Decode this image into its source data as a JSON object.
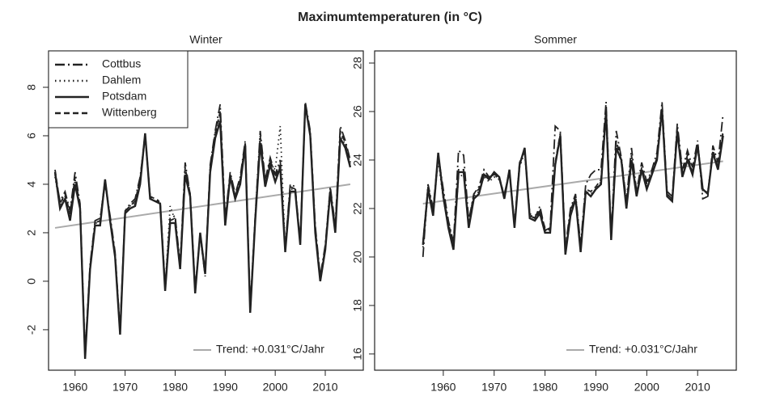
{
  "title": "Maximumtemperaturen (in °C)",
  "chart_data": [
    {
      "type": "line",
      "title": "Winter",
      "x": [
        1956,
        1957,
        1958,
        1959,
        1960,
        1961,
        1962,
        1963,
        1964,
        1965,
        1966,
        1967,
        1968,
        1969,
        1970,
        1971,
        1972,
        1973,
        1974,
        1975,
        1976,
        1977,
        1978,
        1979,
        1980,
        1981,
        1982,
        1983,
        1984,
        1985,
        1986,
        1987,
        1988,
        1989,
        1990,
        1991,
        1992,
        1993,
        1994,
        1995,
        1996,
        1997,
        1998,
        1999,
        2000,
        2001,
        2002,
        2003,
        2004,
        2005,
        2006,
        2007,
        2008,
        2009,
        2010,
        2011,
        2012,
        2013,
        2014,
        2015
      ],
      "xlim": [
        1954.7,
        2017.6
      ],
      "xticks": [
        1960,
        1970,
        1980,
        1990,
        2000,
        2010
      ],
      "ylim": [
        -3.67,
        9.5
      ],
      "yticks": [
        -2,
        0,
        2,
        4,
        6,
        8
      ],
      "legend": "topleft",
      "series": [
        {
          "name": "Cottbus",
          "color": "#222222",
          "linestyle": "dashdot",
          "values": [
            4.4,
            3.3,
            3.7,
            2.9,
            4.5,
            3.2,
            -3.0,
            0.7,
            2.5,
            2.6,
            4.0,
            2.7,
            1.2,
            -2.0,
            2.9,
            3.2,
            3.4,
            4.3,
            6.0,
            3.5,
            3.4,
            3.3,
            -0.2,
            2.6,
            2.7,
            0.7,
            4.9,
            3.6,
            -0.3,
            1.9,
            0.2,
            4.8,
            6.2,
            7.3,
            2.6,
            4.5,
            3.6,
            4.3,
            5.8,
            -1.1,
            2.7,
            6.2,
            4.2,
            5.1,
            4.4,
            5.0,
            1.4,
            4.0,
            3.9,
            1.6,
            7.4,
            6.2,
            2.3,
            0.2,
            1.5,
            3.9,
            2.3,
            6.4,
            5.8,
            5.0
          ]
        },
        {
          "name": "Dahlem",
          "color": "#222222",
          "linestyle": "dotted",
          "values": [
            4.3,
            3.1,
            3.5,
            2.7,
            4.2,
            3.1,
            -3.1,
            0.6,
            2.4,
            2.4,
            4.1,
            2.6,
            1.1,
            -2.1,
            2.8,
            3.1,
            3.2,
            4.1,
            6.0,
            3.4,
            3.3,
            3.2,
            -0.3,
            3.1,
            2.5,
            0.6,
            4.5,
            3.5,
            -0.4,
            1.9,
            0.3,
            4.6,
            6.0,
            6.8,
            2.4,
            4.4,
            3.5,
            4.1,
            5.6,
            -1.2,
            2.6,
            5.9,
            4.0,
            4.9,
            4.6,
            6.4,
            1.3,
            3.8,
            3.8,
            1.5,
            7.2,
            6.1,
            2.1,
            0.1,
            1.4,
            3.8,
            2.1,
            6.1,
            5.6,
            4.8
          ]
        },
        {
          "name": "Potsdam",
          "color": "#222222",
          "linestyle": "solid",
          "values": [
            4.5,
            3.0,
            3.4,
            2.5,
            4.0,
            3.0,
            -3.2,
            0.5,
            2.3,
            2.3,
            4.2,
            2.5,
            1.0,
            -2.2,
            2.8,
            3.0,
            3.1,
            4.0,
            6.1,
            3.4,
            3.3,
            3.2,
            -0.4,
            2.4,
            2.4,
            0.5,
            4.4,
            3.5,
            -0.5,
            2.0,
            0.3,
            4.5,
            5.9,
            6.6,
            2.3,
            4.3,
            3.4,
            4.0,
            5.6,
            -1.3,
            2.5,
            5.7,
            3.9,
            4.8,
            4.1,
            4.7,
            1.2,
            3.7,
            3.7,
            1.5,
            7.3,
            6.0,
            2.0,
            0.0,
            1.3,
            3.7,
            2.0,
            5.9,
            5.5,
            4.7
          ]
        },
        {
          "name": "Wittenberg",
          "color": "#222222",
          "linestyle": "dashed",
          "values": [
            4.6,
            3.2,
            3.6,
            2.8,
            4.3,
            3.1,
            -3.1,
            0.6,
            2.4,
            2.5,
            4.2,
            2.6,
            1.1,
            -2.1,
            2.9,
            3.1,
            3.3,
            4.2,
            6.1,
            3.5,
            3.3,
            3.3,
            -0.3,
            2.5,
            2.6,
            0.6,
            4.7,
            3.6,
            -0.4,
            2.0,
            0.4,
            4.7,
            6.1,
            7.0,
            2.5,
            4.4,
            3.5,
            4.2,
            5.7,
            -1.2,
            2.6,
            6.0,
            4.1,
            5.0,
            4.3,
            4.8,
            1.3,
            3.9,
            3.8,
            1.6,
            7.3,
            6.1,
            2.2,
            0.1,
            1.4,
            3.8,
            2.2,
            6.2,
            5.7,
            4.9
          ]
        }
      ],
      "trend": {
        "name": "Trend: +0.031°C/Jahr",
        "color": "#aaaaaa",
        "legend": "bottomright",
        "x": [
          1956,
          2015
        ],
        "values": [
          2.2,
          4.0
        ]
      }
    },
    {
      "type": "line",
      "title": "Sommer",
      "x": [
        1956,
        1957,
        1958,
        1959,
        1960,
        1961,
        1962,
        1963,
        1964,
        1965,
        1966,
        1967,
        1968,
        1969,
        1970,
        1971,
        1972,
        1973,
        1974,
        1975,
        1976,
        1977,
        1978,
        1979,
        1980,
        1981,
        1982,
        1983,
        1984,
        1985,
        1986,
        1987,
        1988,
        1989,
        1990,
        1991,
        1992,
        1993,
        1994,
        1995,
        1996,
        1997,
        1998,
        1999,
        2000,
        2001,
        2002,
        2003,
        2004,
        2005,
        2006,
        2007,
        2008,
        2009,
        2010,
        2011,
        2012,
        2013,
        2014,
        2015
      ],
      "xlim": [
        1946.5,
        2017.6
      ],
      "xticks": [
        1960,
        1970,
        1980,
        1990,
        2000,
        2010
      ],
      "ylim": [
        15.33,
        28.5
      ],
      "yticks": [
        16,
        18,
        20,
        22,
        24,
        26,
        28
      ],
      "series": [
        {
          "name": "Cottbus",
          "color": "#222222",
          "linestyle": "dashdot",
          "values": [
            20.0,
            23.0,
            22.0,
            24.2,
            22.8,
            21.5,
            20.6,
            24.4,
            24.2,
            21.5,
            22.6,
            22.9,
            23.6,
            23.3,
            23.4,
            23.2,
            22.6,
            23.5,
            21.4,
            23.9,
            24.4,
            21.8,
            21.6,
            22.1,
            21.1,
            21.2,
            25.4,
            25.2,
            20.4,
            22.0,
            22.6,
            20.5,
            23.0,
            23.4,
            23.6,
            23.6,
            26.4,
            20.9,
            25.2,
            24.1,
            22.3,
            24.5,
            22.7,
            23.9,
            23.1,
            23.6,
            24.3,
            26.4,
            22.7,
            22.5,
            25.5,
            23.6,
            24.4,
            23.7,
            24.8,
            22.4,
            22.5,
            24.6,
            23.9,
            25.9
          ]
        },
        {
          "name": "Dahlem",
          "color": "#222222",
          "linestyle": "dotted",
          "values": [
            20.4,
            22.7,
            21.8,
            24.0,
            22.4,
            21.3,
            20.5,
            23.3,
            23.4,
            21.3,
            22.5,
            22.7,
            23.3,
            23.1,
            23.3,
            23.2,
            22.5,
            23.5,
            21.3,
            23.7,
            24.3,
            21.7,
            21.7,
            21.9,
            21.1,
            21.1,
            23.9,
            24.9,
            20.2,
            21.8,
            22.5,
            20.3,
            22.7,
            22.6,
            22.8,
            23.1,
            25.8,
            20.8,
            24.6,
            23.9,
            22.1,
            24.1,
            22.6,
            23.5,
            22.9,
            23.5,
            24.0,
            25.9,
            22.6,
            22.4,
            25.1,
            23.4,
            24.1,
            23.5,
            24.5,
            22.7,
            22.7,
            24.3,
            23.7,
            25.1
          ]
        },
        {
          "name": "Potsdam",
          "color": "#222222",
          "linestyle": "solid",
          "values": [
            20.5,
            22.8,
            21.7,
            24.3,
            22.5,
            21.2,
            20.3,
            23.5,
            23.5,
            21.2,
            22.4,
            22.6,
            23.4,
            23.2,
            23.5,
            23.3,
            22.4,
            23.6,
            21.2,
            23.8,
            24.5,
            21.6,
            21.5,
            21.8,
            21.0,
            21.0,
            23.8,
            25.0,
            20.1,
            21.7,
            22.4,
            20.2,
            22.7,
            22.5,
            22.8,
            23.0,
            26.0,
            20.7,
            24.5,
            24.0,
            22.0,
            24.0,
            22.5,
            23.6,
            22.8,
            23.4,
            24.0,
            26.1,
            22.5,
            22.3,
            25.2,
            23.3,
            24.0,
            23.4,
            24.6,
            22.8,
            22.6,
            24.3,
            23.6,
            25.0
          ]
        },
        {
          "name": "Wittenberg",
          "color": "#222222",
          "linestyle": "dashed",
          "values": [
            20.6,
            22.9,
            21.9,
            24.1,
            22.6,
            21.4,
            20.5,
            23.6,
            23.6,
            21.4,
            22.6,
            22.8,
            23.4,
            23.3,
            23.4,
            23.3,
            22.5,
            23.6,
            21.3,
            23.8,
            24.5,
            21.7,
            21.6,
            21.9,
            21.2,
            21.1,
            23.9,
            25.1,
            20.3,
            21.9,
            22.5,
            20.4,
            22.8,
            22.7,
            22.9,
            23.2,
            26.1,
            20.8,
            24.8,
            24.0,
            22.2,
            24.2,
            22.6,
            23.7,
            23.0,
            23.5,
            24.1,
            26.1,
            22.6,
            22.4,
            25.3,
            23.5,
            24.2,
            23.5,
            24.7,
            22.8,
            22.6,
            24.4,
            23.7,
            25.2
          ]
        }
      ],
      "trend": {
        "name": "Trend: +0.031°C/Jahr",
        "color": "#aaaaaa",
        "legend": "bottomright",
        "x": [
          1956,
          2015
        ],
        "values": [
          22.2,
          23.95
        ]
      }
    }
  ]
}
